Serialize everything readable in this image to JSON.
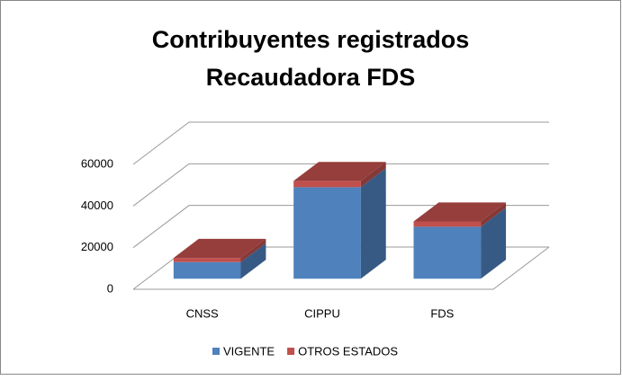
{
  "chart_data": {
    "type": "bar3d_stacked",
    "title": [
      "Contribuyentes registrados",
      "Recaudadora FDS"
    ],
    "categories": [
      "CNSS",
      "CIPPU",
      "FDS"
    ],
    "series": [
      {
        "name": "VIGENTE",
        "color": "#4f81bd",
        "values": [
          8000,
          44000,
          25000
        ]
      },
      {
        "name": "OTROS ESTADOS",
        "color": "#c0504d",
        "values": [
          2000,
          3000,
          2500
        ]
      }
    ],
    "ylim": [
      0,
      60000
    ],
    "yticks": [
      0,
      20000,
      40000,
      60000
    ],
    "grid": true,
    "legend": "bottom"
  }
}
